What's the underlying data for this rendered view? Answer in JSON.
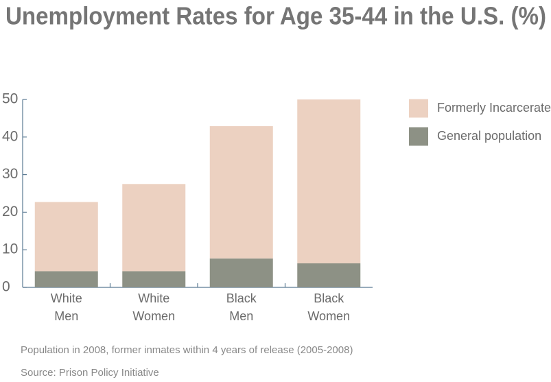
{
  "chart_data": {
    "type": "stacked_bar",
    "title": "Unemployment Rates for Age 35-44 in the U.S. (%)",
    "categories": [
      [
        "White",
        "Men"
      ],
      [
        "White",
        "Women"
      ],
      [
        "Black",
        "Men"
      ],
      [
        "Black",
        "Women"
      ]
    ],
    "series": [
      {
        "name": "General population",
        "color": "#8d9185",
        "values": [
          4.3,
          4.3,
          7.7,
          6.4
        ]
      },
      {
        "name": "Formerly Incarcerated",
        "color": "#ecd1c1",
        "values": [
          18.4,
          23.2,
          35.2,
          43.6
        ]
      }
    ],
    "ylim": [
      0,
      50
    ],
    "yticks": [
      0,
      10,
      20,
      30,
      40,
      50
    ],
    "legend_order": [
      1,
      0
    ],
    "notes": [
      "Population in 2008, former inmates within 4 years of release (2005-2008)",
      "Source: Prison Policy Initiative"
    ]
  }
}
